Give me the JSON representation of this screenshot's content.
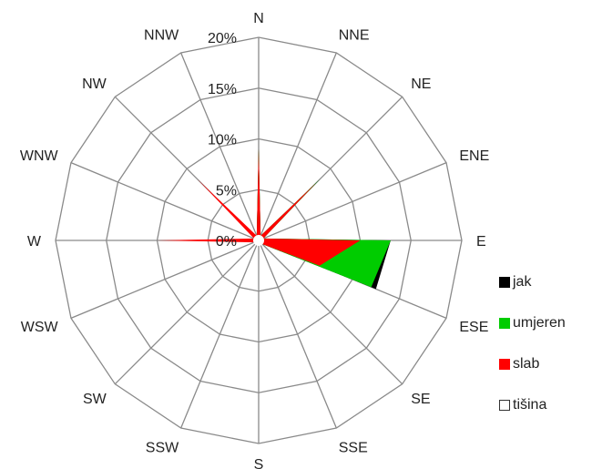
{
  "chart_data": {
    "type": "radar",
    "directions": [
      "N",
      "NNE",
      "NE",
      "ENE",
      "E",
      "ESE",
      "SE",
      "SSE",
      "S",
      "SSW",
      "SW",
      "WSW",
      "W",
      "WNW",
      "NW",
      "NNW"
    ],
    "radial_ticks": [
      "0%",
      "5%",
      "10%",
      "15%",
      "20%"
    ],
    "rmax": 20,
    "series": [
      {
        "name": "jak",
        "color": "#000000",
        "values": [
          9.0,
          0.5,
          8.5,
          0.5,
          13.0,
          12.5,
          0.5,
          0.5,
          0.5,
          0.5,
          0.5,
          0.5,
          0.5,
          0.5,
          0.5,
          0.5
        ]
      },
      {
        "name": "umjeren",
        "color": "#00cc00",
        "values": [
          9.0,
          0.5,
          8.5,
          0.5,
          13.0,
          12.0,
          0.5,
          0.5,
          0.5,
          0.5,
          0.5,
          0.5,
          0.5,
          0.5,
          0.5,
          0.5
        ]
      },
      {
        "name": "slab",
        "color": "#ff0000",
        "values": [
          9.0,
          0.5,
          8.0,
          0.5,
          10.0,
          6.5,
          0.5,
          0.5,
          0.5,
          0.5,
          0.5,
          0.5,
          10.0,
          0.5,
          8.5,
          0.5
        ]
      },
      {
        "name": "tišina",
        "color": "#ffffff",
        "values": [
          0.5,
          0.5,
          0.5,
          0.5,
          0.5,
          0.5,
          0.5,
          0.5,
          0.5,
          0.5,
          0.5,
          0.5,
          0.5,
          0.5,
          0.5,
          0.5
        ]
      }
    ],
    "legend_position": "right"
  }
}
